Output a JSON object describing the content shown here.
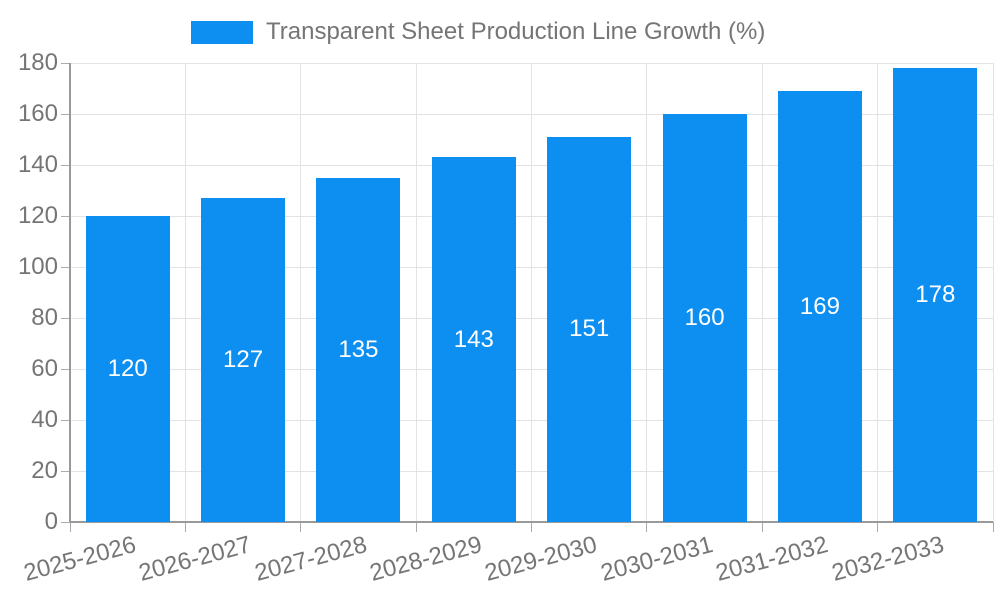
{
  "legend": {
    "position": "top-center",
    "label": "Transparent Sheet Production Line Growth (%)"
  },
  "chart_data": {
    "type": "bar",
    "title": "Transparent Sheet Production Line Growth (%)",
    "series_name": "Transparent Sheet Production Line Growth (%)",
    "categories": [
      "2025-2026",
      "2026-2027",
      "2027-2028",
      "2028-2029",
      "2029-2030",
      "2030-2031",
      "2031-2032",
      "2032-2033"
    ],
    "values": [
      120,
      127,
      135,
      143,
      151,
      160,
      169,
      178
    ],
    "xlabel": "",
    "ylabel": "",
    "ylim": [
      0,
      180
    ],
    "ytick_step": 20,
    "yticks": [
      0,
      20,
      40,
      60,
      80,
      100,
      120,
      140,
      160,
      180
    ],
    "grid": true,
    "x_label_rotation": -15,
    "value_label_position": "inside-center",
    "colors": {
      "bar": "#0d8ff2",
      "grid": "#e3e3e3",
      "axis": "#999999",
      "tick": "#ababab",
      "text": "#757575",
      "bar_label": "#ffffff",
      "background": "#ffffff"
    }
  }
}
